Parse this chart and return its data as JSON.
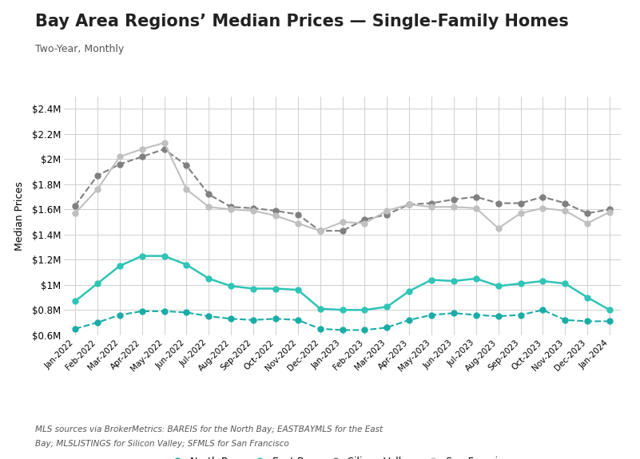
{
  "title": "Bay Area Regions’ Median Prices — Single-Family Homes",
  "subtitle": "Two-Year, Monthly",
  "ylabel": "Median Prices",
  "ylim": [
    600000,
    2500000
  ],
  "yticks": [
    600000,
    800000,
    1000000,
    1200000,
    1400000,
    1600000,
    1800000,
    2000000,
    2200000,
    2400000
  ],
  "ytick_labels": [
    "$0.6M",
    "$0.8M",
    "$1M",
    "$1.2M",
    "$1.4M",
    "$1.6M",
    "$1.8M",
    "$2M",
    "$2.2M",
    "$2.4M"
  ],
  "x_labels": [
    "Jan-2022",
    "Feb-2022",
    "Mar-2022",
    "Apr-2022",
    "May-2022",
    "Jun-2022",
    "Jul-2022",
    "Aug-2022",
    "Sep-2022",
    "Oct-2022",
    "Nov-2022",
    "Dec-2022",
    "Jan-2023",
    "Feb-2023",
    "Mar-2023",
    "Apr-2023",
    "May-2023",
    "Jun-2023",
    "Jul-2023",
    "Aug-2023",
    "Sep-2023",
    "Oct-2023",
    "Nov-2023",
    "Dec-2023",
    "Jan-2024"
  ],
  "series": {
    "North Bay": {
      "color": "#1aada8",
      "marker": "o",
      "marker_size": 5,
      "line_style": "--",
      "line_width": 1.5,
      "values": [
        650000,
        700000,
        760000,
        790000,
        790000,
        780000,
        750000,
        730000,
        720000,
        730000,
        720000,
        650000,
        640000,
        640000,
        660000,
        720000,
        760000,
        775000,
        760000,
        750000,
        760000,
        800000,
        720000,
        710000,
        710000
      ]
    },
    "East Bay": {
      "color": "#2ec4b6",
      "marker": "o",
      "marker_size": 5,
      "line_style": "-",
      "line_width": 1.8,
      "values": [
        870000,
        1010000,
        1150000,
        1230000,
        1230000,
        1160000,
        1050000,
        990000,
        970000,
        970000,
        960000,
        810000,
        800000,
        800000,
        825000,
        950000,
        1040000,
        1030000,
        1050000,
        990000,
        1010000,
        1030000,
        1010000,
        900000,
        800000
      ]
    },
    "Silicon Valley": {
      "color": "#808080",
      "marker": "o",
      "marker_size": 5,
      "line_style": "--",
      "line_width": 1.5,
      "values": [
        1630000,
        1870000,
        1960000,
        2020000,
        2080000,
        1950000,
        1720000,
        1620000,
        1610000,
        1590000,
        1560000,
        1430000,
        1430000,
        1520000,
        1560000,
        1640000,
        1650000,
        1680000,
        1700000,
        1650000,
        1650000,
        1700000,
        1650000,
        1570000,
        1600000
      ]
    },
    "San Francisco": {
      "color": "#c0c0c0",
      "marker": "o",
      "marker_size": 5,
      "line_style": "-",
      "line_width": 1.5,
      "values": [
        1570000,
        1760000,
        2020000,
        2080000,
        2130000,
        1760000,
        1620000,
        1600000,
        1590000,
        1550000,
        1490000,
        1430000,
        1500000,
        1490000,
        1590000,
        1640000,
        1620000,
        1620000,
        1610000,
        1450000,
        1570000,
        1610000,
        1590000,
        1490000,
        1580000
      ]
    }
  },
  "legend_order": [
    "North Bay",
    "East Bay",
    "Silicon Valley",
    "San Francisco"
  ],
  "footnote_line1": "MLS sources via BrokerMetrics: BAREIS for the North Bay; EASTBAYMLS for the East",
  "footnote_line2": "Bay; MLSLISTINGS for Silicon Valley; SFMLS for San Francisco",
  "background_color": "#ffffff",
  "grid_color": "#d0d0d0",
  "title_fontsize": 15,
  "subtitle_fontsize": 9,
  "footnote_fontsize": 7.5
}
